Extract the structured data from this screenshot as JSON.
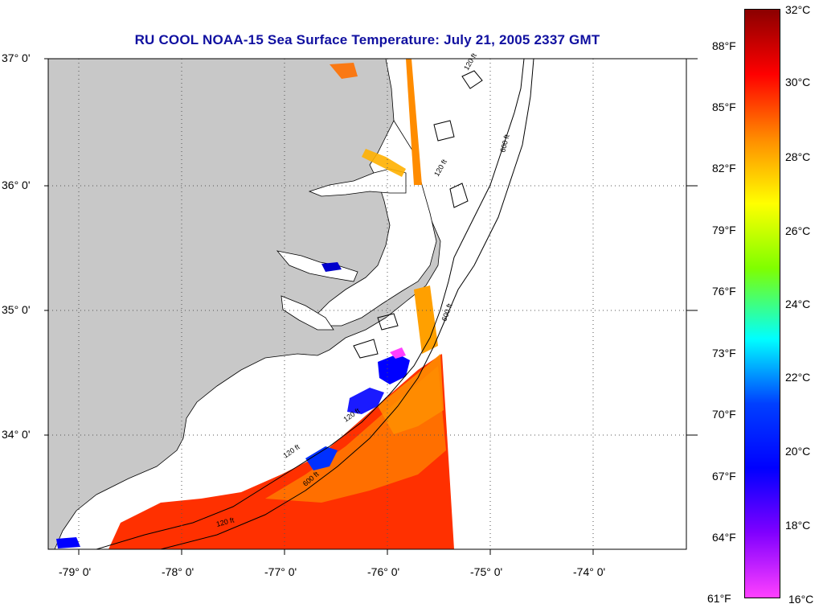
{
  "title": "RU COOL  NOAA-15  Sea Surface Temperature:  July 21, 2005 2337 GMT",
  "lat_labels": [
    "37° 0'",
    "36° 0'",
    "35° 0'",
    "34° 0'"
  ],
  "lon_labels": [
    "-79° 0'",
    "-78° 0'",
    "-77° 0'",
    "-76° 0'",
    "-75° 0'",
    "-74° 0'"
  ],
  "contour_labels": [
    "120 ft",
    "600 ft"
  ],
  "colorbar": {
    "fahrenheit": [
      "88°F",
      "85°F",
      "82°F",
      "79°F",
      "76°F",
      "73°F",
      "70°F",
      "67°F",
      "64°F",
      "61°F"
    ],
    "celsius": [
      "32°C",
      "30°C",
      "28°C",
      "26°C",
      "24°C",
      "22°C",
      "20°C",
      "18°C",
      "16°C"
    ],
    "colors": [
      "#8b0000",
      "#ff0000",
      "#ff8c00",
      "#ffff00",
      "#7fff00",
      "#00ffff",
      "#0040ff",
      "#0000ff",
      "#8000ff",
      "#ff40ff"
    ]
  },
  "colors": {
    "land": "#c8c8c8",
    "ocean": "#ffffff",
    "title": "#1010a0",
    "warm_sst": "#ff2a00",
    "mid_sst": "#ff8c00",
    "cool_sst": "#0000ff"
  }
}
